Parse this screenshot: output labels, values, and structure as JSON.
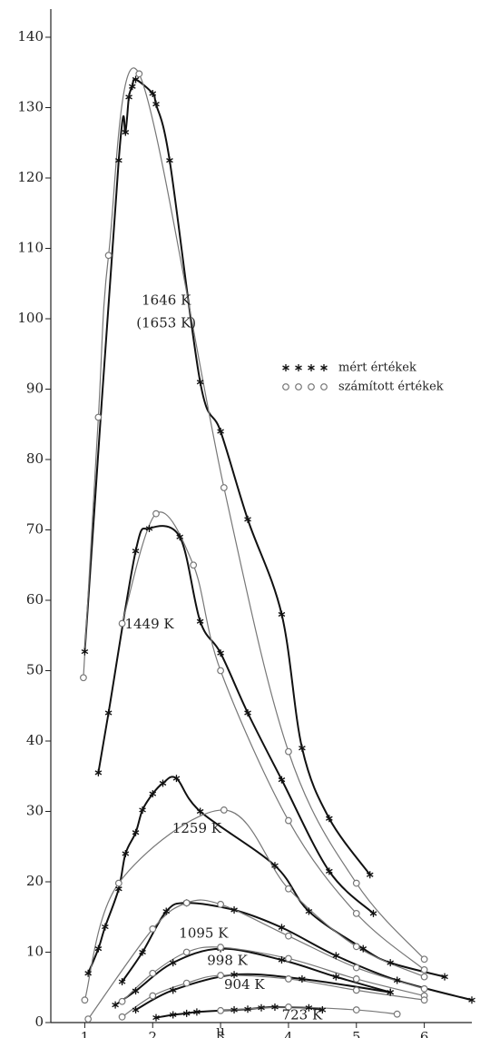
{
  "chart_data": {
    "type": "line",
    "xlabel": "μ",
    "xlim": [
      0.5,
      6.7
    ],
    "ylim": [
      0,
      144
    ],
    "xticks": [
      1,
      2,
      3,
      4,
      5,
      6
    ],
    "yticks": [
      0,
      10,
      20,
      30,
      40,
      50,
      60,
      70,
      80,
      90,
      100,
      110,
      120,
      130,
      140
    ],
    "legend": "right",
    "series": [
      {
        "name": "mért értékek",
        "marker": "asterisk",
        "color": "#111111",
        "curves": [
          {
            "x": [
              1.0,
              1.5,
              1.6,
              1.65,
              1.7,
              1.75,
              2.0,
              2.05,
              2.25,
              2.7,
              3.0,
              3.4,
              3.9,
              4.2,
              4.6,
              5.2
            ],
            "values": [
              52.7,
              122.5,
              126.5,
              131.5,
              133,
              134,
              132,
              130.5,
              122.5,
              91,
              84,
              71.5,
              58,
              39,
              29,
              21
            ]
          },
          {
            "x": [
              1.2,
              1.35,
              1.75,
              1.95,
              2.4,
              2.7,
              3.0,
              3.4,
              3.9,
              4.6,
              5.25
            ],
            "values": [
              35.5,
              44,
              67,
              70.2,
              69,
              57,
              52.5,
              44,
              34.5,
              21.5,
              15.5
            ]
          },
          {
            "x": [
              1.05,
              1.2,
              1.3,
              1.5,
              1.6,
              1.75,
              1.85,
              2.0,
              2.15,
              2.35,
              2.7,
              3.8,
              4.3,
              5.1,
              5.5,
              6.3
            ],
            "values": [
              7,
              10.5,
              13.6,
              19,
              24,
              27,
              30.2,
              32.5,
              34,
              34.7,
              30,
              22.3,
              15.8,
              10.5,
              8.5,
              6.5
            ]
          },
          {
            "x": [
              1.55,
              1.85,
              2.2,
              2.5,
              3.2,
              3.9,
              4.7,
              5.6,
              6.7
            ],
            "values": [
              5.8,
              10,
              15.8,
              17,
              16,
              13.5,
              9.5,
              6,
              3.2
            ]
          },
          {
            "x": [
              1.45,
              1.75,
              2.3,
              3.0,
              3.9,
              4.7,
              5.5
            ],
            "values": [
              2.5,
              4.5,
              8.5,
              10.5,
              8.9,
              6.5,
              4.3
            ]
          },
          {
            "x": [
              1.75,
              2.3,
              3.2,
              4.2,
              5.5
            ],
            "values": [
              1.8,
              4.6,
              6.8,
              6.2,
              4.3
            ]
          },
          {
            "x": [
              2.05,
              2.3,
              2.5,
              2.65,
              3.2,
              3.4,
              3.6,
              3.8,
              4.3,
              4.5
            ],
            "values": [
              0.7,
              1.1,
              1.3,
              1.5,
              1.8,
              1.9,
              2.1,
              2.2,
              2.1,
              1.8
            ]
          }
        ]
      },
      {
        "name": "számított értékek",
        "marker": "circle",
        "color": "#777777",
        "curves": [
          {
            "x": [
              0.98,
              1.2,
              1.35,
              1.8,
              3.05,
              4.0,
              5.0,
              6.0
            ],
            "values": [
              49,
              86,
              109,
              134.8,
              76,
              38.5,
              19.8,
              9
            ]
          },
          {
            "x": [
              1.55,
              2.05,
              2.6,
              3.0,
              4.0,
              5.0,
              6.0
            ],
            "values": [
              56.7,
              72.3,
              65,
              50,
              28.7,
              15.5,
              7.5
            ]
          },
          {
            "x": [
              1.0,
              1.5,
              3.05,
              4.0,
              5.0,
              6.0
            ],
            "values": [
              3.2,
              19.8,
              30.2,
              19,
              10.8,
              6.5
            ]
          },
          {
            "x": [
              1.05,
              2.0,
              2.5,
              3.0,
              4.0,
              5.0,
              6.0
            ],
            "values": [
              0.5,
              13.3,
              17,
              16.8,
              12.3,
              7.8,
              4.8
            ]
          },
          {
            "x": [
              1.55,
              2.0,
              2.5,
              3.0,
              4.0,
              5.0,
              6.0
            ],
            "values": [
              3,
              7,
              10,
              10.7,
              9.1,
              6.2,
              3.8
            ]
          },
          {
            "x": [
              1.55,
              2.0,
              2.5,
              3.0,
              4.0,
              5.0,
              6.0
            ],
            "values": [
              0.8,
              3.8,
              5.6,
              6.7,
              6.2,
              4.6,
              3.2
            ]
          },
          {
            "x": [
              3.0,
              4.0,
              5.0,
              5.6
            ],
            "values": [
              1.7,
              2.2,
              1.8,
              1.2
            ]
          }
        ]
      }
    ],
    "annotations": [
      {
        "text": "1646 K",
        "x": 2.2,
        "y": 102.5
      },
      {
        "text": "(1653 K)",
        "x": 2.2,
        "y": 99.3
      },
      {
        "text": "1449 K",
        "x": 1.95,
        "y": 56.5
      },
      {
        "text": "1259 K",
        "x": 2.65,
        "y": 27.5
      },
      {
        "text": "1095 K",
        "x": 2.75,
        "y": 12.6
      },
      {
        "text": "998 K",
        "x": 3.1,
        "y": 8.7
      },
      {
        "text": "904 K",
        "x": 3.35,
        "y": 5.3
      },
      {
        "text": "723 K",
        "x": 4.2,
        "y": 1.0
      }
    ]
  }
}
